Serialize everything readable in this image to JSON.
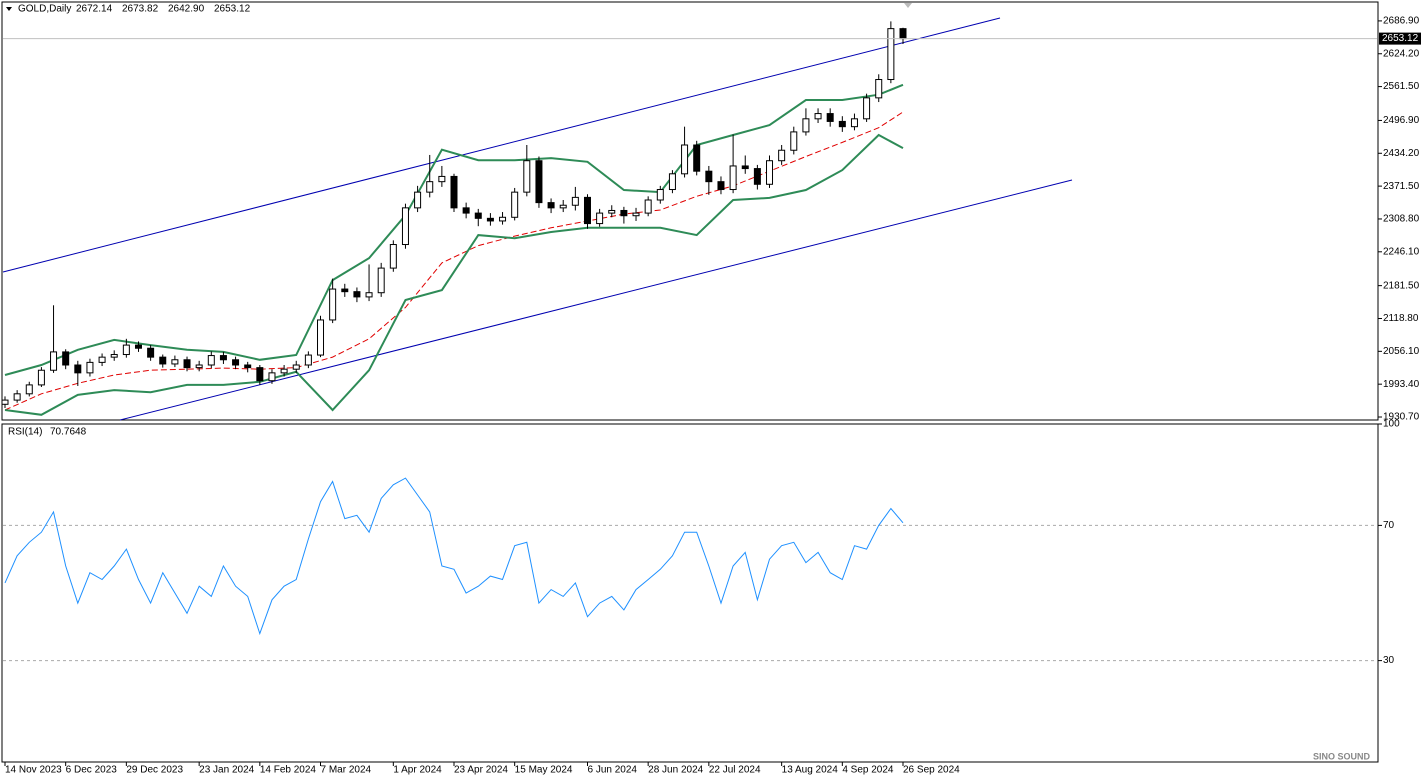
{
  "watermark": "SINO SOUND",
  "chart_data": [
    {
      "type": "candlestick",
      "title": "GOLD,Daily",
      "ohlc_labels": [
        "2672.14",
        "2673.82",
        "2642.90",
        "2653.12"
      ],
      "categories": [
        "14 Nov 2023",
        null,
        null,
        null,
        null,
        "6 Dec 2023",
        null,
        null,
        null,
        null,
        "29 Dec 2023",
        null,
        null,
        null,
        null,
        null,
        "23 Jan 2024",
        null,
        null,
        null,
        null,
        "14 Feb 2024",
        null,
        null,
        null,
        null,
        "7 Mar 2024",
        null,
        null,
        null,
        null,
        null,
        "1 Apr 2024",
        null,
        null,
        null,
        null,
        "23 Apr 2024",
        null,
        null,
        null,
        null,
        "15 May 2024",
        null,
        null,
        null,
        null,
        null,
        "6 Jun 2024",
        null,
        null,
        null,
        null,
        "28 Jun 2024",
        null,
        null,
        null,
        null,
        "22 Jul 2024",
        null,
        null,
        null,
        null,
        null,
        "13 Aug 2024",
        null,
        null,
        null,
        null,
        "4 Sep 2024",
        null,
        null,
        null,
        null,
        "26 Sep 2024"
      ],
      "open": [
        1955,
        1963,
        1975,
        1992,
        2020,
        2055,
        2030,
        2015,
        2035,
        2045,
        2050,
        2068,
        2062,
        2045,
        2032,
        2040,
        2025,
        2030,
        2048,
        2040,
        2030,
        2025,
        2000,
        2015,
        2022,
        2030,
        2049,
        2116,
        2175,
        2170,
        2160,
        2168,
        2215,
        2260,
        2330,
        2360,
        2380,
        2390,
        2330,
        2320,
        2310,
        2305,
        2312,
        2360,
        2420,
        2340,
        2330,
        2335,
        2350,
        2300,
        2320,
        2325,
        2315,
        2320,
        2345,
        2365,
        2395,
        2450,
        2400,
        2380,
        2365,
        2410,
        2405,
        2375,
        2420,
        2440,
        2475,
        2500,
        2510,
        2495,
        2485,
        2500,
        2540,
        2575,
        2672.14
      ],
      "high": [
        1970,
        1982,
        1998,
        2026,
        2144,
        2060,
        2038,
        2042,
        2052,
        2058,
        2080,
        2075,
        2068,
        2050,
        2048,
        2046,
        2038,
        2056,
        2055,
        2046,
        2036,
        2030,
        2022,
        2030,
        2038,
        2056,
        2124,
        2195,
        2185,
        2178,
        2222,
        2225,
        2268,
        2338,
        2372,
        2431,
        2410,
        2395,
        2340,
        2328,
        2320,
        2322,
        2368,
        2450,
        2428,
        2348,
        2345,
        2370,
        2356,
        2328,
        2335,
        2332,
        2330,
        2352,
        2372,
        2402,
        2485,
        2458,
        2410,
        2390,
        2470,
        2430,
        2412,
        2430,
        2450,
        2485,
        2520,
        2520,
        2520,
        2505,
        2510,
        2548,
        2585,
        2686,
        2673.82
      ],
      "low": [
        1948,
        1958,
        1970,
        1988,
        2015,
        2022,
        1990,
        2008,
        2028,
        2038,
        2044,
        2055,
        2038,
        2025,
        2026,
        2018,
        2018,
        2024,
        2032,
        2022,
        2016,
        1992,
        1994,
        2008,
        2015,
        2024,
        2045,
        2110,
        2160,
        2150,
        2152,
        2160,
        2208,
        2252,
        2322,
        2350,
        2370,
        2322,
        2310,
        2295,
        2296,
        2298,
        2306,
        2352,
        2330,
        2320,
        2322,
        2325,
        2290,
        2294,
        2312,
        2300,
        2305,
        2314,
        2338,
        2358,
        2388,
        2392,
        2355,
        2356,
        2358,
        2395,
        2365,
        2368,
        2412,
        2432,
        2468,
        2492,
        2485,
        2475,
        2478,
        2494,
        2532,
        2568,
        2642.9
      ],
      "close": [
        1963,
        1975,
        1992,
        2020,
        2055,
        2030,
        2015,
        2035,
        2045,
        2050,
        2068,
        2062,
        2045,
        2032,
        2040,
        2025,
        2030,
        2048,
        2040,
        2030,
        2025,
        2000,
        2015,
        2022,
        2030,
        2049,
        2116,
        2175,
        2170,
        2160,
        2168,
        2215,
        2260,
        2330,
        2360,
        2380,
        2390,
        2330,
        2320,
        2310,
        2305,
        2312,
        2360,
        2420,
        2340,
        2330,
        2335,
        2350,
        2300,
        2320,
        2325,
        2315,
        2320,
        2345,
        2365,
        2395,
        2450,
        2400,
        2380,
        2365,
        2410,
        2405,
        2375,
        2420,
        2440,
        2475,
        2500,
        2510,
        2495,
        2485,
        2500,
        2540,
        2575,
        2672.14,
        2653.12
      ],
      "up_color": "#ffffff",
      "down_color": "#000000",
      "candle_stroke": "#000000",
      "bands": {
        "x": [
          0,
          3,
          6,
          9,
          12,
          15,
          18,
          21,
          24,
          27,
          30,
          33,
          36,
          39,
          42,
          45,
          48,
          51,
          54,
          57,
          60,
          63,
          66,
          69,
          72,
          74
        ],
        "upper": [
          2011,
          2030,
          2059,
          2078,
          2068,
          2059,
          2055,
          2040,
          2049,
          2192,
          2234,
          2316,
          2441,
          2421,
          2421,
          2425,
          2418,
          2364,
          2360,
          2450,
          2469,
          2488,
          2536,
          2536,
          2546,
          2565
        ],
        "middle": [
          1944,
          1975,
          1995,
          2011,
          2020,
          2022,
          2024,
          2022,
          2025,
          2045,
          2080,
          2140,
          2225,
          2258,
          2276,
          2292,
          2305,
          2318,
          2326,
          2352,
          2372,
          2400,
          2428,
          2455,
          2483,
          2513
        ],
        "lower": [
          1944,
          1935,
          1973,
          1982,
          1978,
          1992,
          1992,
          1998,
          2017,
          1944,
          2020,
          2154,
          2173,
          2278,
          2272,
          2284,
          2292,
          2292,
          2292,
          2278,
          2345,
          2349,
          2364,
          2402,
          2469,
          2444
        ],
        "color": "#2e8b57",
        "middle_color": "#e00000"
      },
      "ylim": [
        1925,
        2723
      ],
      "yticks": [
        {
          "value": 1930.7,
          "label": "1930.70"
        },
        {
          "value": 1993.4,
          "label": "1993.40"
        },
        {
          "value": 2056.1,
          "label": "2056.10"
        },
        {
          "value": 2118.8,
          "label": "2118.80"
        },
        {
          "value": 2181.5,
          "label": "2181.50"
        },
        {
          "value": 2246.1,
          "label": "2246.10"
        },
        {
          "value": 2308.8,
          "label": "2308.80"
        },
        {
          "value": 2371.5,
          "label": "2371.50"
        },
        {
          "value": 2434.2,
          "label": "2434.20"
        },
        {
          "value": 2496.9,
          "label": "2496.90"
        },
        {
          "value": 2561.5,
          "label": "2561.50"
        },
        {
          "value": 2624.2,
          "label": "2624.20"
        },
        {
          "value": 2686.9,
          "label": "2686.90"
        }
      ]
    },
    {
      "type": "line",
      "title": "RSI(14)",
      "values": [
        53,
        61,
        65,
        68,
        74,
        58,
        47,
        56,
        54,
        58,
        63,
        54,
        47,
        56,
        50,
        44,
        52,
        49,
        58,
        52,
        49,
        38,
        48,
        52,
        54,
        66,
        77,
        83,
        72,
        73,
        68,
        78,
        82,
        84,
        79,
        74,
        58,
        57,
        50,
        52,
        55,
        54,
        64,
        65,
        47,
        51,
        49,
        53,
        43,
        47,
        49,
        45,
        51,
        54,
        57,
        61,
        68,
        68,
        58,
        47,
        58,
        62,
        48,
        60,
        64,
        65,
        59,
        62,
        56,
        54,
        64,
        63,
        70,
        75,
        70.7648
      ],
      "color": "#1e90ff",
      "ylim": [
        0,
        100
      ],
      "yticks": [
        30,
        70,
        100
      ]
    }
  ]
}
